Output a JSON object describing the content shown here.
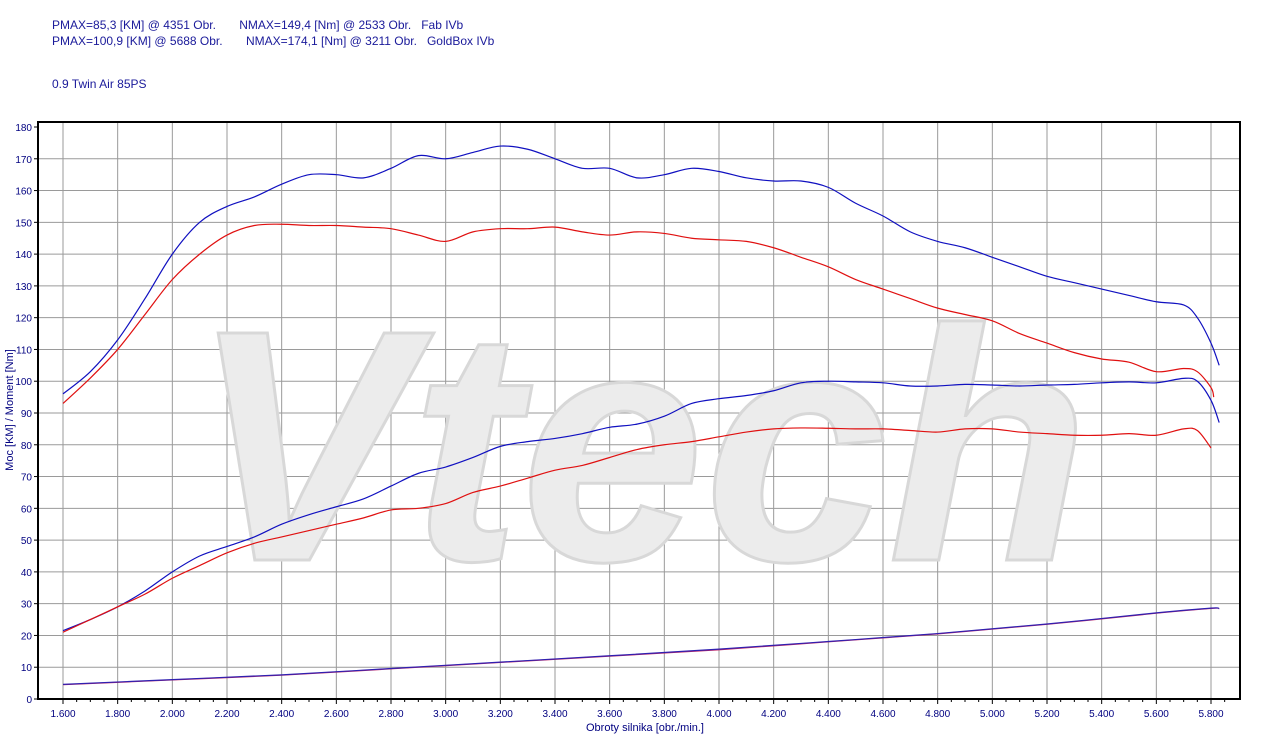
{
  "header": {
    "line1": "PMAX=85,3 [KM] @ 4351 Obr.       NMAX=149,4 [Nm] @ 2533 Obr.   Fab IVb",
    "line2": "PMAX=100,9 [KM] @ 5688 Obr.       NMAX=174,1 [Nm] @ 3211 Obr.   GoldBox IVb",
    "subtitle": "0.9 Twin Air 85PS"
  },
  "watermark": "Vtech",
  "chart_data": {
    "type": "line",
    "xlabel": "Obroty silnika [obr./min.]",
    "ylabel": "Moc [KM] / Moment [Nm]",
    "xlim": [
      1510,
      5900
    ],
    "ylim": [
      0,
      180
    ],
    "grid": true,
    "xticks": [
      1600,
      1800,
      2000,
      2200,
      2400,
      2600,
      2800,
      3000,
      3200,
      3400,
      3600,
      3800,
      4000,
      4200,
      4400,
      4600,
      4800,
      5000,
      5200,
      5400,
      5600,
      5800
    ],
    "xtick_labels": [
      "1.600",
      "1.800",
      "2.000",
      "2.200",
      "2.400",
      "2.600",
      "2.800",
      "3.000",
      "3.200",
      "3.400",
      "3.600",
      "3.800",
      "4.000",
      "4.200",
      "4.400",
      "4.600",
      "4.800",
      "5.000",
      "5.200",
      "5.400",
      "5.600",
      "5.800"
    ],
    "yticks": [
      0,
      10,
      20,
      30,
      40,
      50,
      60,
      70,
      80,
      90,
      100,
      110,
      120,
      130,
      140,
      150,
      160,
      170,
      180
    ],
    "colors": {
      "fab": "#e01010",
      "goldbox": "#1010c0"
    },
    "series": [
      {
        "id": "goldbox-torque",
        "color": "#1010c0",
        "x": [
          1600,
          1700,
          1800,
          1900,
          2000,
          2100,
          2200,
          2300,
          2400,
          2500,
          2600,
          2700,
          2800,
          2900,
          3000,
          3100,
          3200,
          3300,
          3400,
          3500,
          3600,
          3700,
          3800,
          3900,
          4000,
          4100,
          4200,
          4300,
          4400,
          4500,
          4600,
          4700,
          4800,
          4900,
          5000,
          5100,
          5200,
          5300,
          5400,
          5500,
          5600,
          5700,
          5750,
          5800,
          5830
        ],
        "y": [
          96,
          103,
          113,
          126,
          140,
          150,
          155,
          158,
          162,
          165,
          165,
          164,
          167,
          171,
          170,
          172,
          174,
          173,
          170,
          167,
          167,
          164,
          165,
          167,
          166,
          164,
          163,
          163,
          161,
          156,
          152,
          147,
          144,
          142,
          139,
          136,
          133,
          131,
          129,
          127,
          125,
          124,
          120,
          112,
          105
        ]
      },
      {
        "id": "fab-torque",
        "color": "#e01010",
        "x": [
          1600,
          1700,
          1800,
          1900,
          2000,
          2100,
          2200,
          2300,
          2400,
          2500,
          2600,
          2700,
          2800,
          2900,
          3000,
          3100,
          3200,
          3300,
          3400,
          3500,
          3600,
          3700,
          3800,
          3900,
          4000,
          4100,
          4200,
          4300,
          4400,
          4500,
          4600,
          4700,
          4800,
          4900,
          5000,
          5100,
          5200,
          5300,
          5400,
          5500,
          5600,
          5700,
          5750,
          5800,
          5810
        ],
        "y": [
          93,
          101,
          110,
          121,
          132,
          140,
          146,
          149,
          149.4,
          149,
          149,
          148.5,
          148,
          146,
          144,
          147,
          148,
          148,
          148.5,
          147,
          146,
          147,
          146.5,
          145,
          144.5,
          144,
          142,
          139,
          136,
          132,
          129,
          126,
          123,
          121,
          119,
          115,
          112,
          109,
          107,
          106,
          103,
          104,
          103,
          98,
          95
        ]
      },
      {
        "id": "goldbox-power",
        "color": "#1010c0",
        "x": [
          1600,
          1700,
          1800,
          1900,
          2000,
          2100,
          2200,
          2300,
          2400,
          2500,
          2600,
          2700,
          2800,
          2900,
          3000,
          3100,
          3200,
          3300,
          3400,
          3500,
          3600,
          3700,
          3800,
          3900,
          4000,
          4100,
          4200,
          4300,
          4400,
          4500,
          4600,
          4700,
          4800,
          4900,
          5000,
          5100,
          5200,
          5300,
          5400,
          5500,
          5600,
          5700,
          5750,
          5800,
          5830
        ],
        "y": [
          21.5,
          25,
          29,
          34,
          40,
          45,
          48,
          51,
          55,
          58,
          60.5,
          63,
          67,
          71,
          73,
          76,
          79.5,
          81,
          82,
          83.5,
          85.5,
          86.5,
          89,
          93,
          94.5,
          95.5,
          97,
          99.5,
          100,
          99.8,
          99.5,
          98.5,
          98.5,
          99,
          98.8,
          98.5,
          98.8,
          99,
          99.5,
          99.8,
          99.5,
          100.9,
          100,
          94,
          87
        ]
      },
      {
        "id": "fab-power",
        "color": "#e01010",
        "x": [
          1600,
          1700,
          1800,
          1900,
          2000,
          2100,
          2200,
          2300,
          2400,
          2500,
          2600,
          2700,
          2800,
          2900,
          3000,
          3100,
          3200,
          3300,
          3400,
          3500,
          3600,
          3700,
          3800,
          3900,
          4000,
          4100,
          4200,
          4300,
          4400,
          4500,
          4600,
          4700,
          4800,
          4900,
          5000,
          5100,
          5200,
          5300,
          5400,
          5500,
          5600,
          5700,
          5750,
          5800
        ],
        "y": [
          21,
          25,
          29,
          33,
          38,
          42,
          46,
          49,
          51,
          53,
          55,
          57,
          59.5,
          60,
          61.5,
          65,
          67,
          69.5,
          72,
          73.5,
          76,
          78.5,
          80,
          81,
          82.5,
          84,
          85,
          85.3,
          85.2,
          85,
          85,
          84.5,
          84,
          85,
          85,
          84,
          83.5,
          83,
          83,
          83.5,
          83,
          85,
          84.5,
          79
        ]
      },
      {
        "id": "fab-loss",
        "color": "#c02060",
        "x": [
          1600,
          2000,
          2400,
          2800,
          3200,
          3600,
          4000,
          4400,
          4800,
          5200,
          5600,
          5800,
          5830
        ],
        "y": [
          4.5,
          6,
          7.5,
          9.5,
          11.5,
          13.5,
          15.5,
          18,
          20.5,
          23.5,
          27,
          28.5,
          28.5
        ]
      },
      {
        "id": "goldbox-loss",
        "color": "#3020b0",
        "x": [
          1600,
          2000,
          2400,
          2800,
          3200,
          3600,
          4000,
          4400,
          4800,
          5200,
          5600,
          5800,
          5830
        ],
        "y": [
          4.6,
          6.1,
          7.6,
          9.6,
          11.6,
          13.6,
          15.7,
          18.1,
          20.6,
          23.6,
          27.1,
          28.6,
          28.4
        ]
      }
    ]
  }
}
